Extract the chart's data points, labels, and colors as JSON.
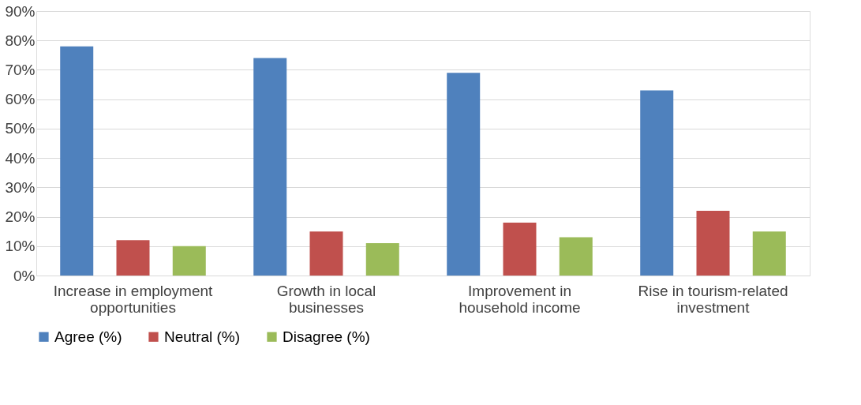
{
  "chart_data": {
    "type": "bar",
    "categories": [
      "Increase in employment opportunities",
      "Growth in local businesses",
      "Improvement in household income",
      "Rise in tourism-related investment"
    ],
    "series": [
      {
        "name": "Agree (%)",
        "color": "#4f81bd",
        "values": [
          78,
          74,
          69,
          63
        ]
      },
      {
        "name": "Neutral (%)",
        "color": "#c0504d",
        "values": [
          12,
          15,
          18,
          22
        ]
      },
      {
        "name": "Disagree (%)",
        "color": "#9bbb59",
        "values": [
          10,
          11,
          13,
          15
        ]
      }
    ],
    "ylim": [
      0,
      90
    ],
    "yticks": [
      {
        "value": 0,
        "label": "0%"
      },
      {
        "value": 10,
        "label": "10%"
      },
      {
        "value": 20,
        "label": "20%"
      },
      {
        "value": 30,
        "label": "30%"
      },
      {
        "value": 40,
        "label": "40%"
      },
      {
        "value": 50,
        "label": "50%"
      },
      {
        "value": 60,
        "label": "60%"
      },
      {
        "value": 70,
        "label": "70%"
      },
      {
        "value": 80,
        "label": "80%"
      },
      {
        "value": 90,
        "label": "90%"
      }
    ],
    "grid": "y",
    "legend": "bottom"
  }
}
